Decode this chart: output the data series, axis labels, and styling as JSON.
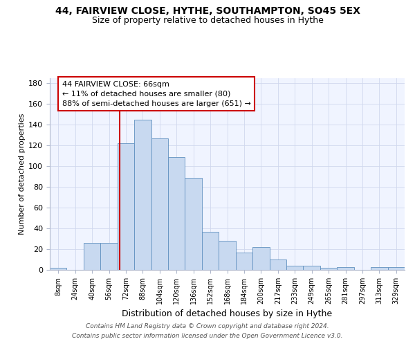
{
  "title1": "44, FAIRVIEW CLOSE, HYTHE, SOUTHAMPTON, SO45 5EX",
  "title2": "Size of property relative to detached houses in Hythe",
  "xlabel": "Distribution of detached houses by size in Hythe",
  "ylabel": "Number of detached properties",
  "categories": [
    "8sqm",
    "24sqm",
    "40sqm",
    "56sqm",
    "72sqm",
    "88sqm",
    "104sqm",
    "120sqm",
    "136sqm",
    "152sqm",
    "168sqm",
    "184sqm",
    "200sqm",
    "217sqm",
    "233sqm",
    "249sqm",
    "265sqm",
    "281sqm",
    "297sqm",
    "313sqm",
    "329sqm"
  ],
  "values": [
    2,
    0,
    26,
    26,
    122,
    145,
    127,
    109,
    89,
    37,
    28,
    17,
    22,
    10,
    4,
    4,
    2,
    3,
    0,
    3,
    3
  ],
  "bar_color": "#c8d9f0",
  "bar_edge_color": "#6090c0",
  "red_line_x": 66,
  "bin_width": 16,
  "annotation_line1": "44 FAIRVIEW CLOSE: 66sqm",
  "annotation_line2": "← 11% of detached houses are smaller (80)",
  "annotation_line3": "88% of semi-detached houses are larger (651) →",
  "annotation_box_color": "#ffffff",
  "annotation_box_edge": "#cc0000",
  "footnote1": "Contains HM Land Registry data © Crown copyright and database right 2024.",
  "footnote2": "Contains public sector information licensed under the Open Government Licence v3.0.",
  "ylim": [
    0,
    185
  ],
  "yticks": [
    0,
    20,
    40,
    60,
    80,
    100,
    120,
    140,
    160,
    180
  ],
  "grid_color": "#d0d8ee",
  "background_color": "#f0f4ff",
  "title1_fontsize": 10,
  "title2_fontsize": 9
}
